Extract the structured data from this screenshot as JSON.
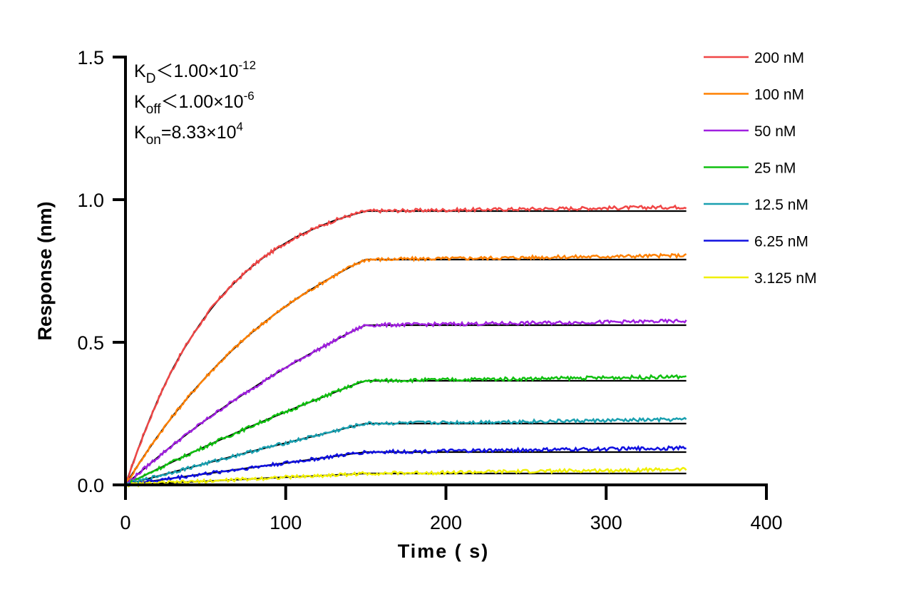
{
  "chart_data": {
    "type": "line",
    "xlabel": "Time ( s)",
    "ylabel": "Response (nm)",
    "xlim": [
      0,
      400
    ],
    "ylim": [
      0,
      1.5
    ],
    "xticks": [
      "0",
      "100",
      "200",
      "300",
      "400"
    ],
    "yticks": [
      "0.0",
      "0.5",
      "1.0",
      "1.5"
    ],
    "grid": false,
    "legend_placement": "top-right",
    "fit_color": "#000000",
    "annotations": [
      {
        "sym": "K",
        "sub": "D",
        "rel": "<",
        "mant": "1.00×10",
        "exp": "-12"
      },
      {
        "sym": "K",
        "sub": "off",
        "rel": "<",
        "mant": "1.00×10",
        "exp": "-6"
      },
      {
        "sym": "K",
        "sub": "on",
        "rel": "=",
        "mant": "8.33×10",
        "exp": "4"
      }
    ],
    "x": [
      0,
      25,
      50,
      75,
      100,
      125,
      150,
      200,
      250,
      300,
      350
    ],
    "series": [
      {
        "name": "200 nM",
        "color": "#f04646",
        "values": [
          0,
          0.356,
          0.591,
          0.746,
          0.848,
          0.915,
          0.96,
          0.96,
          0.96,
          0.96,
          0.96
        ]
      },
      {
        "name": "100 nM",
        "color": "#ff8000",
        "values": [
          0,
          0.208,
          0.377,
          0.515,
          0.626,
          0.716,
          0.79,
          0.79,
          0.79,
          0.79,
          0.79
        ]
      },
      {
        "name": "50 nM",
        "color": "#a020e0",
        "values": [
          0,
          0.119,
          0.227,
          0.323,
          0.411,
          0.489,
          0.56,
          0.56,
          0.56,
          0.56,
          0.56
        ]
      },
      {
        "name": "25 nM",
        "color": "#10c010",
        "values": [
          0,
          0.069,
          0.135,
          0.197,
          0.256,
          0.312,
          0.365,
          0.365,
          0.365,
          0.365,
          0.365
        ]
      },
      {
        "name": "12.5 nM",
        "color": "#1aa0b0",
        "values": [
          0,
          0.038,
          0.075,
          0.112,
          0.147,
          0.181,
          0.215,
          0.215,
          0.215,
          0.215,
          0.215
        ]
      },
      {
        "name": "6.25 nM",
        "color": "#1010e0",
        "values": [
          0,
          0.02,
          0.039,
          0.058,
          0.077,
          0.096,
          0.115,
          0.115,
          0.115,
          0.115,
          0.115
        ]
      },
      {
        "name": "3.125 nM",
        "color": "#f0f000",
        "values": [
          0,
          0.007,
          0.013,
          0.02,
          0.027,
          0.033,
          0.04,
          0.04,
          0.04,
          0.04,
          0.04
        ]
      }
    ]
  }
}
